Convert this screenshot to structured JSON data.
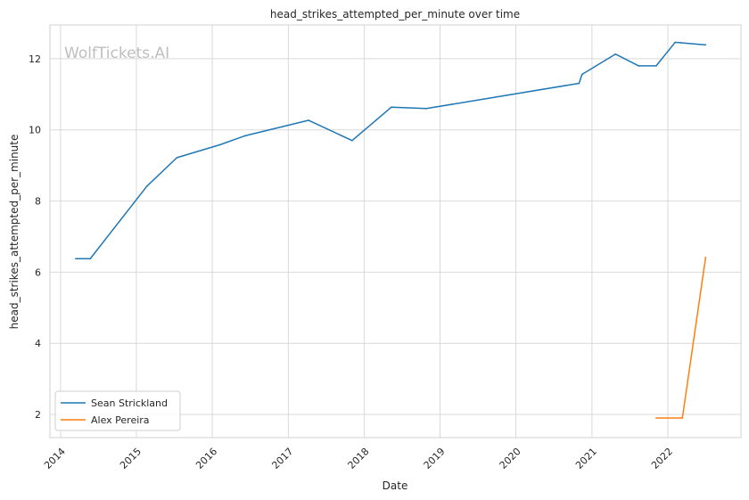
{
  "chart_data": {
    "type": "line",
    "title": "head_strikes_attempted_per_minute over time",
    "xlabel": "Date",
    "ylabel": "head_strikes_attempted_per_minute",
    "watermark": "WolfTickets.AI",
    "x_ticks": [
      "2014",
      "2015",
      "2016",
      "2017",
      "2018",
      "2019",
      "2020",
      "2021",
      "2022"
    ],
    "y_ticks": [
      2,
      4,
      6,
      8,
      10,
      12
    ],
    "xlim": [
      "2013-11-11",
      "2022-12-19"
    ],
    "ylim": [
      1.35,
      12.95
    ],
    "grid": true,
    "legend_position": "lower-left",
    "series": [
      {
        "name": "Sean Strickland",
        "color": "#1f77b4",
        "points": [
          {
            "x": "2014-03-15",
            "y": 6.38
          },
          {
            "x": "2014-05-24",
            "y": 6.38
          },
          {
            "x": "2015-02-21",
            "y": 8.42
          },
          {
            "x": "2015-07-15",
            "y": 9.22
          },
          {
            "x": "2016-02-06",
            "y": 9.58
          },
          {
            "x": "2016-06-04",
            "y": 9.83
          },
          {
            "x": "2017-04-08",
            "y": 10.27
          },
          {
            "x": "2017-11-04",
            "y": 9.7
          },
          {
            "x": "2018-05-12",
            "y": 10.64
          },
          {
            "x": "2018-10-27",
            "y": 10.6
          },
          {
            "x": "2020-10-31",
            "y": 11.31
          },
          {
            "x": "2020-11-14",
            "y": 11.56
          },
          {
            "x": "2021-04-24",
            "y": 12.13
          },
          {
            "x": "2021-08-14",
            "y": 11.8
          },
          {
            "x": "2021-11-06",
            "y": 11.8
          },
          {
            "x": "2022-02-05",
            "y": 12.46
          },
          {
            "x": "2022-03-05",
            "y": 12.45
          },
          {
            "x": "2022-07-02",
            "y": 12.39
          }
        ]
      },
      {
        "name": "Alex Pereira",
        "color": "#ff7f0e",
        "points": [
          {
            "x": "2021-11-06",
            "y": 1.9
          },
          {
            "x": "2022-03-12",
            "y": 1.9
          },
          {
            "x": "2022-07-02",
            "y": 6.42
          }
        ]
      }
    ]
  }
}
